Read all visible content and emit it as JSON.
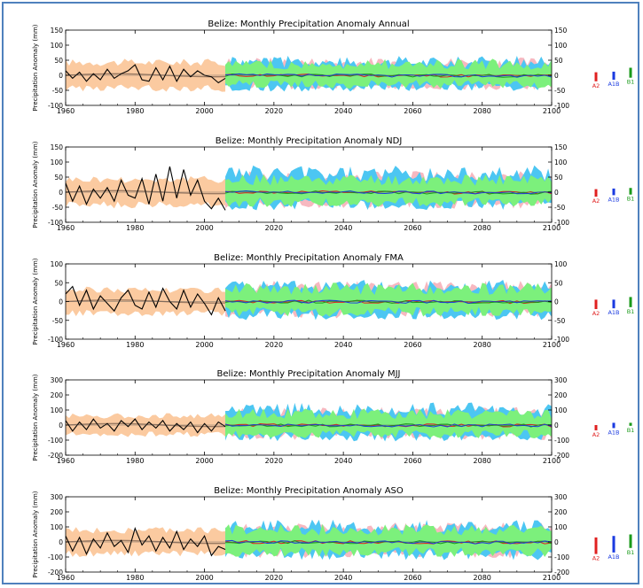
{
  "colors": {
    "frame_border": "#4f81bd",
    "observed_line": "#000000",
    "observed_smooth": "#9b7a62",
    "observed_band": "#fbcaa0",
    "band_a2": "#f7b8c0",
    "band_a1b": "#4cc6f2",
    "band_b1": "#7cf07c",
    "line_a2": "#e02020",
    "line_a1b": "#1a3ae0",
    "line_b1": "#1a9a1a"
  },
  "legend": [
    {
      "label": "A2",
      "color": "#e02020"
    },
    {
      "label": "A1B",
      "color": "#1a3ae0"
    },
    {
      "label": "B1",
      "color": "#1a9a1a"
    }
  ],
  "chart_data": [
    {
      "type": "area",
      "title": "Belize: Monthly Precipitation Anomaly Annual",
      "ylabel": "Precipitation Anomaly (mm)",
      "xlim": [
        1960,
        2100
      ],
      "ylim": [
        -100,
        150
      ],
      "x_ticks": [
        "1960",
        "1980",
        "2000",
        "2020",
        "2040",
        "2060",
        "2080",
        "2100"
      ],
      "y_ticks": [
        "-100",
        "-50",
        "0",
        "50",
        "100",
        "150"
      ],
      "observed": {
        "x": [
          1960,
          1962,
          1964,
          1966,
          1968,
          1970,
          1972,
          1974,
          1976,
          1978,
          1980,
          1982,
          1984,
          1986,
          1988,
          1990,
          1992,
          1994,
          1996,
          1998,
          2000,
          2002,
          2004,
          2006
        ],
        "y": [
          15,
          -10,
          10,
          -20,
          5,
          -15,
          20,
          -10,
          5,
          15,
          35,
          -15,
          -20,
          25,
          -15,
          30,
          -20,
          20,
          -5,
          15,
          0,
          -5,
          -25,
          -10
        ]
      },
      "observed_band": [
        -55,
        55
      ],
      "future_band": {
        "a2": [
          -50,
          60
        ],
        "a1b": [
          -55,
          65
        ],
        "b1": [
          -45,
          55
        ]
      },
      "legend_bars": {
        "A2": [
          -20,
          10
        ],
        "A1B": [
          -15,
          12
        ],
        "B1": [
          -8,
          25
        ]
      }
    },
    {
      "type": "area",
      "title": "Belize: Monthly Precipitation Anomaly NDJ",
      "ylabel": "Precipitation Anomaly (mm)",
      "xlim": [
        1960,
        2100
      ],
      "ylim": [
        -100,
        150
      ],
      "x_ticks": [
        "1960",
        "1980",
        "2000",
        "2020",
        "2040",
        "2060",
        "2080",
        "2100"
      ],
      "y_ticks": [
        "-100",
        "-50",
        "0",
        "50",
        "100",
        "150"
      ],
      "observed": {
        "x": [
          1960,
          1962,
          1964,
          1966,
          1968,
          1970,
          1972,
          1974,
          1976,
          1978,
          1980,
          1982,
          1984,
          1986,
          1988,
          1990,
          1992,
          1994,
          1996,
          1998,
          2000,
          2002,
          2004,
          2006
        ],
        "y": [
          30,
          -30,
          20,
          -40,
          10,
          -20,
          15,
          -30,
          40,
          -10,
          -20,
          45,
          -40,
          60,
          -30,
          85,
          -20,
          75,
          -10,
          40,
          -30,
          -55,
          -20,
          -60
        ]
      },
      "observed_band": [
        -55,
        55
      ],
      "future_band": {
        "a2": [
          -55,
          70
        ],
        "a1b": [
          -60,
          90
        ],
        "b1": [
          -50,
          60
        ]
      },
      "legend_bars": {
        "A2": [
          -15,
          10
        ],
        "A1B": [
          -10,
          12
        ],
        "B1": [
          -8,
          14
        ]
      }
    },
    {
      "type": "area",
      "title": "Belize: Monthly Precipitation Anomaly FMA",
      "ylabel": "Precipitation Anomaly (mm)",
      "xlim": [
        1960,
        2100
      ],
      "ylim": [
        -100,
        100
      ],
      "x_ticks": [
        "1960",
        "1980",
        "2000",
        "2020",
        "2040",
        "2060",
        "2080",
        "2100"
      ],
      "y_ticks": [
        "-100",
        "-50",
        "0",
        "50",
        "100"
      ],
      "observed": {
        "x": [
          1960,
          1962,
          1964,
          1966,
          1968,
          1970,
          1972,
          1974,
          1976,
          1978,
          1980,
          1982,
          1984,
          1986,
          1988,
          1990,
          1992,
          1994,
          1996,
          1998,
          2000,
          2002,
          2004,
          2006
        ],
        "y": [
          20,
          40,
          -10,
          30,
          -20,
          15,
          -5,
          -25,
          10,
          30,
          -10,
          -20,
          25,
          -15,
          35,
          0,
          -20,
          30,
          -15,
          20,
          -5,
          -35,
          10,
          -25
        ]
      },
      "observed_band": [
        -40,
        40
      ],
      "future_band": {
        "a2": [
          -45,
          55
        ],
        "a1b": [
          -50,
          60
        ],
        "b1": [
          -40,
          50
        ]
      },
      "legend_bars": {
        "A2": [
          -20,
          5
        ],
        "A1B": [
          -18,
          5
        ],
        "B1": [
          -15,
          12
        ]
      }
    },
    {
      "type": "area",
      "title": "Belize: Monthly Precipitation Anomaly MJJ",
      "ylabel": "Precipitation Anomaly (mm)",
      "xlim": [
        1960,
        2100
      ],
      "ylim": [
        -200,
        300
      ],
      "x_ticks": [
        "1960",
        "1980",
        "2000",
        "2020",
        "2040",
        "2060",
        "2080",
        "2100"
      ],
      "y_ticks": [
        "-200",
        "-100",
        "0",
        "100",
        "200",
        "300"
      ],
      "observed": {
        "x": [
          1960,
          1962,
          1964,
          1966,
          1968,
          1970,
          1972,
          1974,
          1976,
          1978,
          1980,
          1982,
          1984,
          1986,
          1988,
          1990,
          1992,
          1994,
          1996,
          1998,
          2000,
          2002,
          2004,
          2006
        ],
        "y": [
          30,
          -40,
          20,
          -30,
          40,
          -20,
          10,
          -40,
          30,
          -10,
          40,
          -30,
          20,
          -20,
          30,
          -40,
          10,
          -30,
          20,
          -50,
          10,
          -40,
          20,
          -10
        ]
      },
      "observed_band": [
        -80,
        80
      ],
      "future_band": {
        "a2": [
          -100,
          120
        ],
        "a1b": [
          -110,
          150
        ],
        "b1": [
          -90,
          110
        ]
      },
      "legend_bars": {
        "A2": [
          -35,
          0
        ],
        "A1B": [
          -20,
          15
        ],
        "B1": [
          -5,
          15
        ]
      }
    },
    {
      "type": "area",
      "title": "Belize: Monthly Precipitation Anomaly ASO",
      "ylabel": "Precipitation Anomaly (mm)",
      "xlim": [
        1960,
        2100
      ],
      "ylim": [
        -200,
        300
      ],
      "x_ticks": [
        "1960",
        "1980",
        "2000",
        "2020",
        "2040",
        "2060",
        "2080",
        "2100"
      ],
      "y_ticks": [
        "-200",
        "-100",
        "0",
        "100",
        "200",
        "300"
      ],
      "observed": {
        "x": [
          1960,
          1962,
          1964,
          1966,
          1968,
          1970,
          1972,
          1974,
          1976,
          1978,
          1980,
          1982,
          1984,
          1986,
          1988,
          1990,
          1992,
          1994,
          1996,
          1998,
          2000,
          2002,
          2004,
          2006
        ],
        "y": [
          40,
          -60,
          30,
          -80,
          20,
          -40,
          60,
          -30,
          10,
          -70,
          90,
          -20,
          40,
          -60,
          30,
          -40,
          70,
          -50,
          20,
          -30,
          40,
          -90,
          -30,
          -50
        ]
      },
      "observed_band": [
        -100,
        100
      ],
      "future_band": {
        "a2": [
          -110,
          130
        ],
        "a1b": [
          -120,
          150
        ],
        "b1": [
          -100,
          120
        ]
      },
      "legend_bars": {
        "A2": [
          -80,
          30
        ],
        "A1B": [
          -70,
          40
        ],
        "B1": [
          -40,
          50
        ]
      }
    }
  ]
}
